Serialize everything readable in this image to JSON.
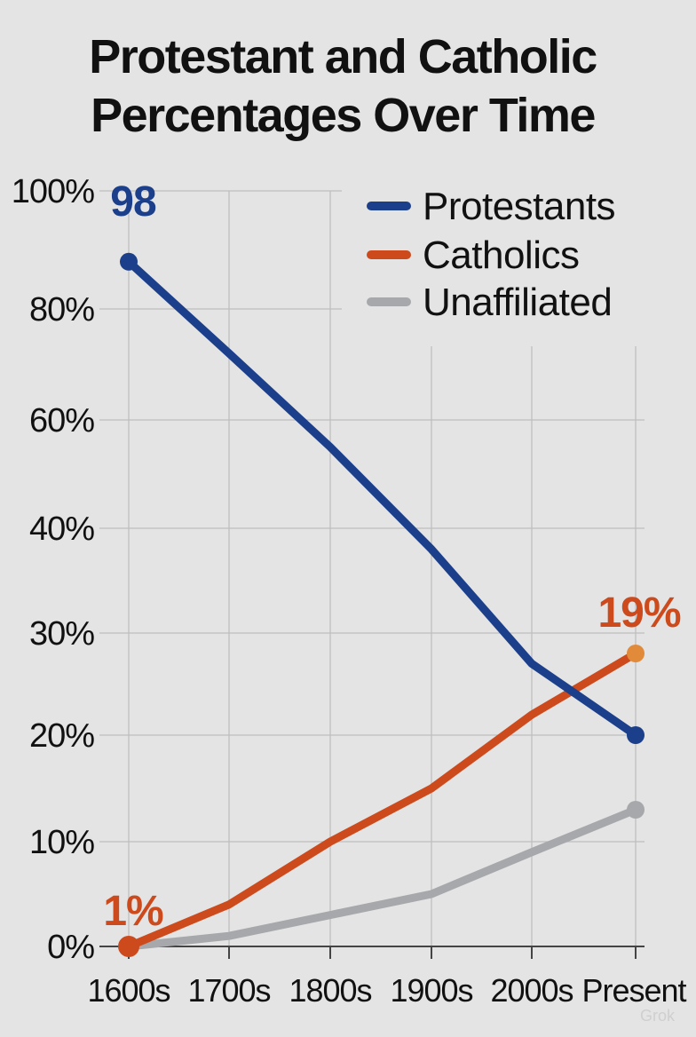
{
  "chart_data": {
    "type": "line",
    "title_lines": [
      "Protestant and Catholic",
      "Percentages Over Time"
    ],
    "xlabel": "",
    "ylabel": "",
    "categories": [
      "1600s",
      "1700s",
      "1800s",
      "1900s",
      "2000s",
      "Present"
    ],
    "y_ticks": [
      {
        "label": "0%",
        "value": 0
      },
      {
        "label": "10%",
        "value": 10
      },
      {
        "label": "20%",
        "value": 20
      },
      {
        "label": "30%",
        "value": 30
      },
      {
        "label": "40%",
        "value": 40
      },
      {
        "label": "60%",
        "value": 60
      },
      {
        "label": "80%",
        "value": 80
      },
      {
        "label": "100%",
        "value": 100
      }
    ],
    "y_scale": "nonlinear (tick spacing uneven as printed)",
    "ylim": [
      0,
      100
    ],
    "grid": true,
    "legend_position": "top-right",
    "series": [
      {
        "name": "Protestants",
        "color": "#1b3f8b",
        "values": [
          88,
          72,
          55,
          38,
          27,
          20
        ]
      },
      {
        "name": "Catholics",
        "color": "#cc4a1c",
        "values": [
          0,
          4,
          10,
          15,
          22,
          28
        ]
      },
      {
        "name": "Unaffiliated",
        "color": "#a6a8ab",
        "values": [
          0,
          1,
          3,
          5,
          9,
          13
        ]
      }
    ],
    "annotations": [
      {
        "text": "98",
        "series": "Protestants",
        "color": "#1b3f8b"
      },
      {
        "text": "19%",
        "series": "Catholics",
        "color": "#cc4a1c"
      },
      {
        "text": "1%",
        "series": "Catholics",
        "color": "#cc4a1c"
      }
    ]
  },
  "watermark": "Grok"
}
